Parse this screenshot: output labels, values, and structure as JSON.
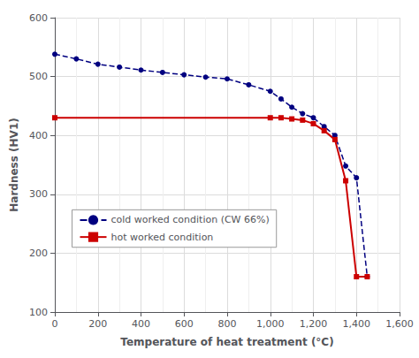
{
  "chart_data": {
    "type": "line",
    "xlabel": "Temperature of heat treatment (°C)",
    "ylabel": "Hardness (HV1)",
    "xlim": [
      0,
      1600
    ],
    "ylim": [
      100,
      600
    ],
    "xticks": [
      0,
      200,
      400,
      600,
      800,
      1000,
      1200,
      1400,
      1600
    ],
    "yticks": [
      100,
      200,
      300,
      400,
      500,
      600
    ],
    "grid": true,
    "legend": "lower left",
    "series": [
      {
        "name": "cold worked condition (CW 66%)",
        "color": "#000080",
        "marker": "circle",
        "line_style": "dashed",
        "x": [
          0,
          100,
          200,
          300,
          400,
          500,
          600,
          700,
          800,
          900,
          1000,
          1050,
          1100,
          1150,
          1200,
          1250,
          1300,
          1350,
          1400,
          1450
        ],
        "values": [
          538,
          530,
          521,
          516,
          511,
          507,
          503,
          499,
          496,
          486,
          475,
          462,
          448,
          437,
          430,
          415,
          400,
          348,
          328,
          160
        ]
      },
      {
        "name": "hot worked condition",
        "color": "#CC0000",
        "marker": "square",
        "line_style": "solid",
        "x": [
          0,
          1000,
          1050,
          1100,
          1150,
          1200,
          1250,
          1300,
          1350,
          1400,
          1450
        ],
        "values": [
          430,
          430,
          430,
          428,
          426,
          420,
          408,
          393,
          323,
          160,
          160
        ]
      }
    ]
  }
}
